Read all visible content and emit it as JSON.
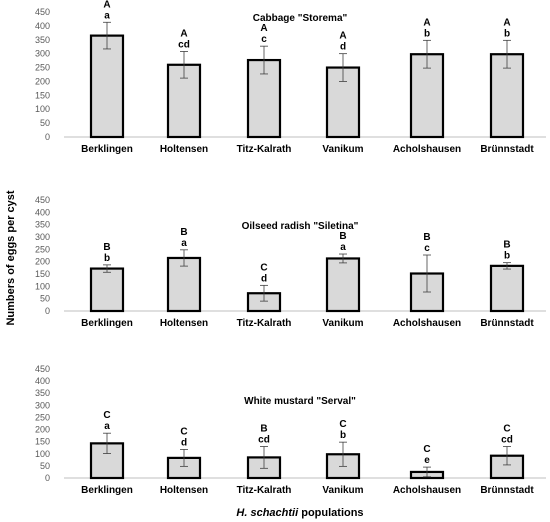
{
  "figure": {
    "ylabel": "Numbers of eggs per cyst",
    "xlabel_italic": "H. schachtii",
    "xlabel_rest": " populations"
  },
  "chart_data": [
    {
      "type": "bar",
      "title": "Cabbage \"Storema\"",
      "categories": [
        "Berklingen",
        "Holtensen",
        "Titz-Kalrath",
        "Vanikum",
        "Acholshausen",
        "Brünnstadt"
      ],
      "values": [
        365,
        260,
        277,
        250,
        298,
        298
      ],
      "errors": [
        48,
        48,
        50,
        50,
        50,
        50
      ],
      "letters_upper": [
        "A",
        "A",
        "A",
        "A",
        "A",
        "A"
      ],
      "letters_lower": [
        "a",
        "cd",
        "c",
        "d",
        "b",
        "b"
      ],
      "ylim": [
        0,
        450
      ],
      "yticks": [
        0,
        50,
        100,
        150,
        200,
        250,
        300,
        350,
        400,
        450
      ],
      "xlabel": "",
      "ylabel": ""
    },
    {
      "type": "bar",
      "title": "Oilseed radish \"Siletina\"",
      "categories": [
        "Berklingen",
        "Holtensen",
        "Titz-Kalrath",
        "Vanikum",
        "Acholshausen",
        "Brünnstadt"
      ],
      "values": [
        172,
        215,
        72,
        213,
        152,
        183
      ],
      "errors": [
        15,
        33,
        32,
        18,
        75,
        13
      ],
      "letters_upper": [
        "B",
        "B",
        "C",
        "B",
        "B",
        "B"
      ],
      "letters_lower": [
        "b",
        "a",
        "d",
        "a",
        "c",
        "b"
      ],
      "ylim": [
        0,
        450
      ],
      "yticks": [
        0,
        50,
        100,
        150,
        200,
        250,
        300,
        350,
        400,
        450
      ],
      "xlabel": "",
      "ylabel": ""
    },
    {
      "type": "bar",
      "title": "White mustard \"Serval\"",
      "categories": [
        "Berklingen",
        "Holtensen",
        "Titz-Kalrath",
        "Vanikum",
        "Acholshausen",
        "Brünnstadt"
      ],
      "values": [
        143,
        83,
        85,
        98,
        25,
        92
      ],
      "errors": [
        42,
        35,
        45,
        50,
        20,
        38
      ],
      "letters_upper": [
        "C",
        "C",
        "B",
        "C",
        "C",
        "C"
      ],
      "letters_lower": [
        "a",
        "d",
        "cd",
        "b",
        "e",
        "cd"
      ],
      "ylim": [
        0,
        450
      ],
      "yticks": [
        0,
        50,
        100,
        150,
        200,
        250,
        300,
        350,
        400,
        450
      ],
      "xlabel": "",
      "ylabel": ""
    }
  ]
}
